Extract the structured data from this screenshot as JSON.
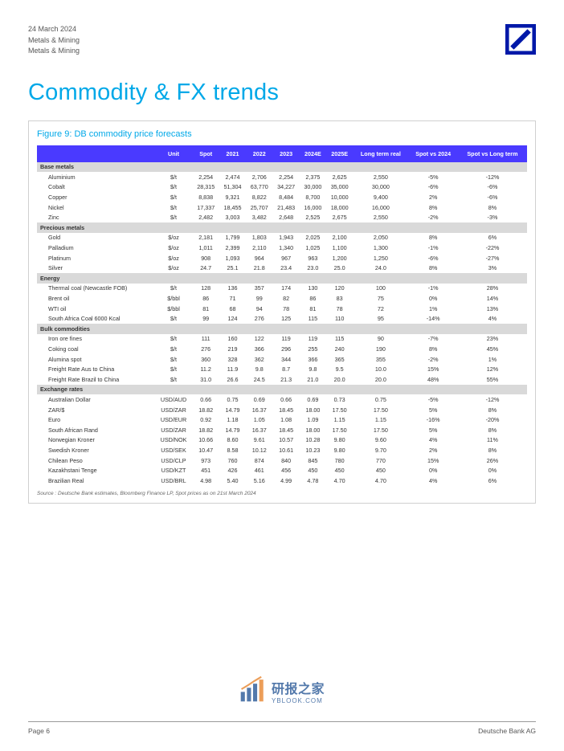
{
  "header": {
    "date": "24 March 2024",
    "line2": "Metals & Mining",
    "line3": "Metals & Mining"
  },
  "title": "Commodity & FX trends",
  "figure_caption": "Figure 9: DB commodity price forecasts",
  "columns": [
    "",
    "Unit",
    "Spot",
    "2021",
    "2022",
    "2023",
    "2024E",
    "2025E",
    "Long term real",
    "Spot vs 2024",
    "Spot vs Long term"
  ],
  "sections": [
    {
      "name": "Base metals",
      "rows": [
        [
          "Aluminium",
          "$/t",
          "2,254",
          "2,474",
          "2,706",
          "2,254",
          "2,375",
          "2,625",
          "2,550",
          "-5%",
          "-12%"
        ],
        [
          "Cobalt",
          "$/t",
          "28,315",
          "51,304",
          "63,770",
          "34,227",
          "30,000",
          "35,000",
          "30,000",
          "-6%",
          "-6%"
        ],
        [
          "Copper",
          "$/t",
          "8,838",
          "9,321",
          "8,822",
          "8,484",
          "8,700",
          "10,000",
          "9,400",
          "2%",
          "-6%"
        ],
        [
          "Nickel",
          "$/t",
          "17,337",
          "18,455",
          "25,707",
          "21,483",
          "16,000",
          "18,000",
          "16,000",
          "8%",
          "8%"
        ],
        [
          "Zinc",
          "$/t",
          "2,482",
          "3,003",
          "3,482",
          "2,648",
          "2,525",
          "2,675",
          "2,550",
          "-2%",
          "-3%"
        ]
      ]
    },
    {
      "name": "Precious metals",
      "rows": [
        [
          "Gold",
          "$/oz",
          "2,181",
          "1,799",
          "1,803",
          "1,943",
          "2,025",
          "2,100",
          "2,050",
          "8%",
          "6%"
        ],
        [
          "Palladium",
          "$/oz",
          "1,011",
          "2,399",
          "2,110",
          "1,340",
          "1,025",
          "1,100",
          "1,300",
          "-1%",
          "-22%"
        ],
        [
          "Platinum",
          "$/oz",
          "908",
          "1,093",
          "964",
          "967",
          "963",
          "1,200",
          "1,250",
          "-6%",
          "-27%"
        ],
        [
          "Silver",
          "$/oz",
          "24.7",
          "25.1",
          "21.8",
          "23.4",
          "23.0",
          "25.0",
          "24.0",
          "8%",
          "3%"
        ]
      ]
    },
    {
      "name": "Energy",
      "rows": [
        [
          "Thermal coal (Newcastle FOB)",
          "$/t",
          "128",
          "136",
          "357",
          "174",
          "130",
          "120",
          "100",
          "-1%",
          "28%"
        ],
        [
          "Brent oil",
          "$/bbl",
          "86",
          "71",
          "99",
          "82",
          "86",
          "83",
          "75",
          "0%",
          "14%"
        ],
        [
          "WTI oil",
          "$/bbl",
          "81",
          "68",
          "94",
          "78",
          "81",
          "78",
          "72",
          "1%",
          "13%"
        ],
        [
          "South Africa Coal 6000 Kcal",
          "$/t",
          "99",
          "124",
          "276",
          "125",
          "115",
          "110",
          "95",
          "-14%",
          "4%"
        ]
      ]
    },
    {
      "name": "Bulk commodities",
      "rows": [
        [
          "Iron ore fines",
          "$/t",
          "111",
          "160",
          "122",
          "119",
          "119",
          "115",
          "90",
          "-7%",
          "23%"
        ],
        [
          "Coking coal",
          "$/t",
          "276",
          "219",
          "366",
          "296",
          "255",
          "240",
          "190",
          "8%",
          "45%"
        ],
        [
          "Alumina spot",
          "$/t",
          "360",
          "328",
          "362",
          "344",
          "366",
          "365",
          "355",
          "-2%",
          "1%"
        ],
        [
          "Freight Rate Aus to China",
          "$/t",
          "11.2",
          "11.9",
          "9.8",
          "8.7",
          "9.8",
          "9.5",
          "10.0",
          "15%",
          "12%"
        ],
        [
          "Freight Rate Brazil to China",
          "$/t",
          "31.0",
          "26.6",
          "24.5",
          "21.3",
          "21.0",
          "20.0",
          "20.0",
          "48%",
          "55%"
        ]
      ]
    },
    {
      "name": "Exchange rates",
      "rows": [
        [
          "Australian Dollar",
          "USD/AUD",
          "0.66",
          "0.75",
          "0.69",
          "0.66",
          "0.69",
          "0.73",
          "0.75",
          "-5%",
          "-12%"
        ],
        [
          "ZAR/$",
          "USD/ZAR",
          "18.82",
          "14.79",
          "16.37",
          "18.45",
          "18.00",
          "17.50",
          "17.50",
          "5%",
          "8%"
        ],
        [
          "Euro",
          "USD/EUR",
          "0.92",
          "1.18",
          "1.05",
          "1.08",
          "1.09",
          "1.15",
          "1.15",
          "-16%",
          "-20%"
        ],
        [
          "South African Rand",
          "USD/ZAR",
          "18.82",
          "14.79",
          "16.37",
          "18.45",
          "18.00",
          "17.50",
          "17.50",
          "5%",
          "8%"
        ],
        [
          "Norwegian Kroner",
          "USD/NOK",
          "10.66",
          "8.60",
          "9.61",
          "10.57",
          "10.28",
          "9.80",
          "9.60",
          "4%",
          "11%"
        ],
        [
          "Swedish Kroner",
          "USD/SEK",
          "10.47",
          "8.58",
          "10.12",
          "10.61",
          "10.23",
          "9.80",
          "9.70",
          "2%",
          "8%"
        ],
        [
          "Chilean Peso",
          "USD/CLP",
          "973",
          "760",
          "874",
          "840",
          "845",
          "780",
          "770",
          "15%",
          "26%"
        ],
        [
          "Kazakhstani Tenge",
          "USD/KZT",
          "451",
          "426",
          "461",
          "456",
          "450",
          "450",
          "450",
          "0%",
          "0%"
        ],
        [
          "Brazilian Real",
          "USD/BRL",
          "4.98",
          "5.40",
          "5.16",
          "4.99",
          "4.78",
          "4.70",
          "4.70",
          "4%",
          "6%"
        ]
      ]
    }
  ],
  "source": "Source : Deutsche Bank estimates, Bloomberg Finance LP, Spot prices as on 21st March 2024",
  "footer": {
    "left": "Page 6",
    "right": "Deutsche Bank AG"
  },
  "watermark": {
    "main": "研报之家",
    "sub": "YBLOOK.COM"
  },
  "colors": {
    "title": "#00a8e8",
    "caption": "#00a8e8",
    "header_bg": "#4a3aff",
    "section_bg": "#d9d9d9",
    "logo": "#0018a8"
  }
}
